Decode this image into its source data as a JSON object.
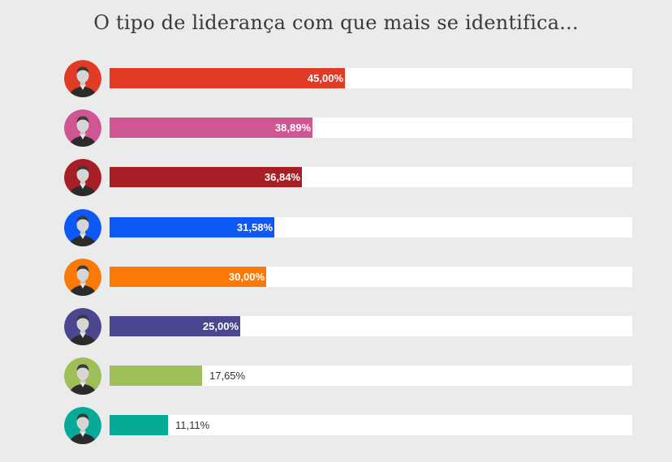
{
  "chart_data": {
    "type": "bar",
    "orientation": "horizontal",
    "title": "O tipo de liderança com que mais se identifica...",
    "xlim": [
      0,
      100
    ],
    "grid": false,
    "legend": "none",
    "values": [
      45.0,
      38.89,
      36.84,
      31.58,
      30.0,
      25.0,
      17.65,
      11.11
    ],
    "value_labels": [
      "45,00%",
      "38,89%",
      "36,84%",
      "31,58%",
      "30,00%",
      "25,00%",
      "17,65%",
      "11,11%"
    ],
    "colors": [
      "#e13b26",
      "#cf5593",
      "#a81e25",
      "#0e58f5",
      "#fb7906",
      "#4a468f",
      "#9ebe57",
      "#06ab97"
    ],
    "avatar_icons": [
      "person-photo-icon",
      "person-photo-icon",
      "person-photo-icon",
      "person-photo-icon",
      "person-photo-icon",
      "person-photo-icon",
      "person-photo-icon",
      "person-photo-icon"
    ]
  }
}
